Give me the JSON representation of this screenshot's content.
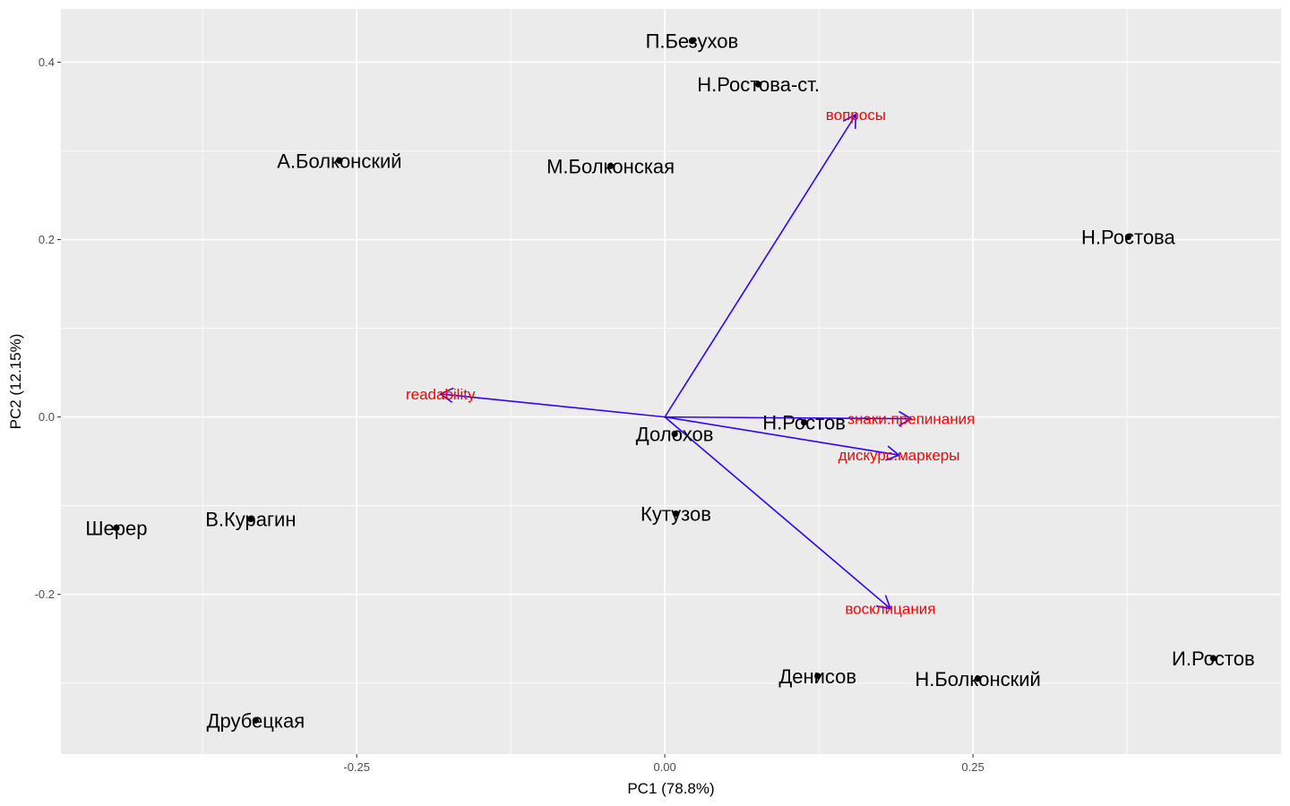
{
  "chart_data": {
    "type": "scatter",
    "subtype": "pca-biplot",
    "title": "",
    "xlabel": "PC1 (78.8%)",
    "ylabel": "PC2 (12.15%)",
    "xlim": [
      -0.49,
      0.5
    ],
    "ylim": [
      -0.38,
      0.46
    ],
    "x_ticks": [
      -0.25,
      0.0,
      0.25
    ],
    "x_tick_labels": [
      "-0.25",
      "0.00",
      "0.25"
    ],
    "x_minor_ticks": [
      -0.375,
      -0.125,
      0.125,
      0.375
    ],
    "y_ticks": [
      -0.2,
      0.0,
      0.2,
      0.4
    ],
    "y_tick_labels": [
      "-0.2",
      "0.0",
      "0.2",
      "0.4"
    ],
    "y_minor_ticks": [
      -0.3,
      -0.1,
      0.1,
      0.3
    ],
    "grid": true,
    "points": [
      {
        "label": "П.Безухов",
        "x": 0.022,
        "y": 0.424
      },
      {
        "label": "Н.Ростова-ст.",
        "x": 0.076,
        "y": 0.375
      },
      {
        "label": "А.Болконский",
        "x": -0.264,
        "y": 0.289
      },
      {
        "label": "М.Болконская",
        "x": -0.044,
        "y": 0.283
      },
      {
        "label": "Н.Ростова",
        "x": 0.376,
        "y": 0.203
      },
      {
        "label": "Н.Ростов",
        "x": 0.113,
        "y": -0.006
      },
      {
        "label": "Долохов",
        "x": 0.008,
        "y": -0.019
      },
      {
        "label": "Кутузов",
        "x": 0.009,
        "y": -0.109
      },
      {
        "label": "Шерер",
        "x": -0.445,
        "y": -0.125
      },
      {
        "label": "В.Курагин",
        "x": -0.336,
        "y": -0.115
      },
      {
        "label": "Денисов",
        "x": 0.124,
        "y": -0.292
      },
      {
        "label": "Н.Болконский",
        "x": 0.254,
        "y": -0.295
      },
      {
        "label": "И.Ростов",
        "x": 0.445,
        "y": -0.272
      },
      {
        "label": "Друбецкая",
        "x": -0.332,
        "y": -0.342
      }
    ],
    "loadings": [
      {
        "label": "вопросы",
        "x": 0.155,
        "y": 0.341
      },
      {
        "label": "readability",
        "x": -0.182,
        "y": 0.026
      },
      {
        "label": "знаки.препинания",
        "x": 0.2,
        "y": -0.002
      },
      {
        "label": "дискурс.маркеры",
        "x": 0.19,
        "y": -0.043
      },
      {
        "label": "восклицания",
        "x": 0.183,
        "y": -0.216
      }
    ],
    "colors": {
      "panel": "#ebebeb",
      "grid": "#ffffff",
      "points": "#000000",
      "arrows": "#3300ff",
      "loading_labels": "#ff0000"
    }
  }
}
